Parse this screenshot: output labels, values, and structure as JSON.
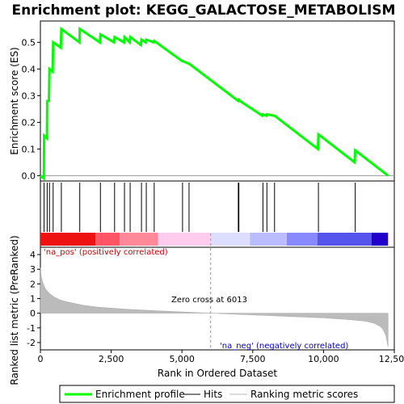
{
  "chart_data": {
    "type": "line",
    "title": "Enrichment plot: KEGG_GALACTOSE_METABOLISM",
    "es_panel": {
      "ylabel": "Enrichment score (ES)",
      "ylim": [
        -0.02,
        0.58
      ],
      "yticks": [
        "0.0",
        "0.1",
        "0.2",
        "0.3",
        "0.4",
        "0.5"
      ],
      "ytick_values": [
        0.0,
        0.1,
        0.2,
        0.3,
        0.4,
        0.5
      ],
      "line_color": "#00ff00",
      "series": [
        {
          "name": "Enrichment profile",
          "x": [
            0,
            120,
            130,
            230,
            240,
            300,
            320,
            430,
            450,
            720,
            740,
            1380,
            1390,
            2100,
            2120,
            2600,
            2620,
            2950,
            2970,
            3150,
            3170,
            3550,
            3570,
            3720,
            3740,
            4000,
            4020,
            5000,
            5020,
            5230,
            5250,
            6990,
            7010,
            7050,
            7840,
            7860,
            7980,
            8000,
            8250,
            8270,
            9800,
            9820,
            11100,
            11120,
            12280
          ],
          "y": [
            0,
            -0.01,
            0.15,
            0.14,
            0.28,
            0.28,
            0.4,
            0.39,
            0.5,
            0.48,
            0.55,
            0.5,
            0.55,
            0.5,
            0.53,
            0.5,
            0.52,
            0.5,
            0.52,
            0.5,
            0.52,
            0.49,
            0.51,
            0.5,
            0.51,
            0.5,
            0.505,
            0.43,
            0.43,
            0.42,
            0.42,
            0.28,
            0.285,
            0.28,
            0.225,
            0.23,
            0.225,
            0.23,
            0.225,
            0.225,
            0.1,
            0.155,
            0.05,
            0.095,
            0.0
          ]
        }
      ]
    },
    "hits": [
      130,
      240,
      320,
      450,
      740,
      1390,
      2120,
      2620,
      2970,
      3170,
      3570,
      3740,
      4020,
      5020,
      5250,
      6990,
      7010,
      7860,
      8000,
      8270,
      9820,
      11120
    ],
    "ranked_panel": {
      "ylabel": "Ranked list metric (PreRanked)",
      "ylim": [
        -2.5,
        4.5
      ],
      "yticks": [
        "-2",
        "-1",
        "0",
        "1",
        "2",
        "3",
        "4"
      ],
      "ytick_values": [
        -2,
        -1,
        0,
        1,
        2,
        3,
        4
      ],
      "zero_cross_label": "Zero cross at 6013",
      "zero_cross": 6013,
      "pos_label": "'na_pos' (positively correlated)",
      "neg_label": "'na_neg' (negatively correlated)",
      "pos_color": "#cc0000",
      "neg_color": "#0000cc",
      "profile_x": [
        0,
        30,
        100,
        200,
        350,
        500,
        700,
        1000,
        1500,
        2000,
        3000,
        4000,
        5000,
        6013,
        7000,
        8000,
        9000,
        10000,
        11000,
        11500,
        11800,
        12000,
        12100,
        12200,
        12250,
        12280
      ],
      "profile_y": [
        3.1,
        2.5,
        2.0,
        1.6,
        1.3,
        1.1,
        0.9,
        0.75,
        0.55,
        0.42,
        0.28,
        0.18,
        0.09,
        0.0,
        -0.08,
        -0.16,
        -0.24,
        -0.32,
        -0.45,
        -0.55,
        -0.7,
        -0.9,
        -1.1,
        -1.5,
        -2.0,
        -2.3
      ]
    },
    "xlabel": "Rank in Ordered Dataset",
    "xlim": [
      0,
      12500
    ],
    "xticks": [
      "0",
      "2,500",
      "5,000",
      "7,500",
      "10,000",
      "12,500"
    ],
    "xtick_values": [
      0,
      2500,
      5000,
      7500,
      10000,
      12500
    ],
    "n_genes": 12280,
    "heatmap_segments": [
      {
        "from": 0,
        "to": 1950,
        "color": "#ee1111"
      },
      {
        "from": 1950,
        "to": 2800,
        "color": "#ff5566"
      },
      {
        "from": 2800,
        "to": 4150,
        "color": "#ff8899"
      },
      {
        "from": 4150,
        "to": 6013,
        "color": "#ffccee"
      },
      {
        "from": 6013,
        "to": 7400,
        "color": "#ddddff"
      },
      {
        "from": 7400,
        "to": 8700,
        "color": "#bbbbff"
      },
      {
        "from": 8700,
        "to": 9780,
        "color": "#8888ff"
      },
      {
        "from": 9780,
        "to": 11700,
        "color": "#5555ee"
      },
      {
        "from": 11700,
        "to": 12280,
        "color": "#2200cc"
      }
    ],
    "legend": [
      {
        "label": "Enrichment profile",
        "color": "#00ff00"
      },
      {
        "label": "Hits",
        "color": "#000000"
      },
      {
        "label": "Ranking metric scores",
        "color": "#bbbbbb"
      }
    ]
  }
}
